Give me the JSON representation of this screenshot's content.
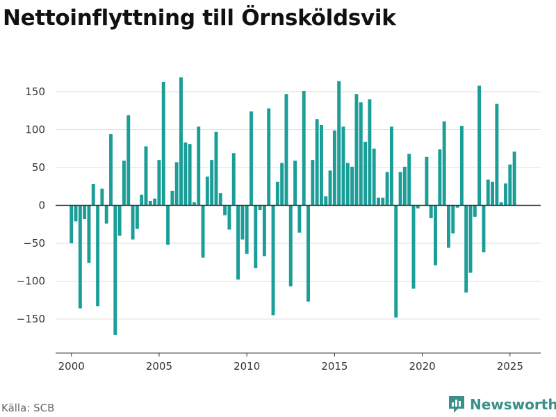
{
  "chart_data": {
    "type": "bar",
    "title": "Nettoinflyttning till Örnsköldsvik",
    "xlabel": "",
    "ylabel": "",
    "x_ticks": [
      "2000",
      "2005",
      "2010",
      "2015",
      "2020",
      "2025"
    ],
    "y_ticks": [
      "150",
      "100",
      "50",
      "0",
      "−50",
      "−100",
      "−150"
    ],
    "ylim": [
      -195,
      195
    ],
    "xlim": [
      1999.1,
      2026.75
    ],
    "grid": true,
    "bar_color": "#1b9e98",
    "x": [
      "2000 Q1",
      "2000 Q2",
      "2000 Q3",
      "2000 Q4",
      "2001 Q1",
      "2001 Q2",
      "2001 Q3",
      "2001 Q4",
      "2002 Q1",
      "2002 Q2",
      "2002 Q3",
      "2002 Q4",
      "2003 Q1",
      "2003 Q2",
      "2003 Q3",
      "2003 Q4",
      "2004 Q1",
      "2004 Q2",
      "2004 Q3",
      "2004 Q4",
      "2005 Q1",
      "2005 Q2",
      "2005 Q3",
      "2005 Q4",
      "2006 Q1",
      "2006 Q2",
      "2006 Q3",
      "2006 Q4",
      "2007 Q1",
      "2007 Q2",
      "2007 Q3",
      "2007 Q4",
      "2008 Q1",
      "2008 Q2",
      "2008 Q3",
      "2008 Q4",
      "2009 Q1",
      "2009 Q2",
      "2009 Q3",
      "2009 Q4",
      "2010 Q1",
      "2010 Q2",
      "2010 Q3",
      "2010 Q4",
      "2011 Q1",
      "2011 Q2",
      "2011 Q3",
      "2011 Q4",
      "2012 Q1",
      "2012 Q2",
      "2012 Q3",
      "2012 Q4",
      "2013 Q1",
      "2013 Q2",
      "2013 Q3",
      "2013 Q4",
      "2014 Q1",
      "2014 Q2",
      "2014 Q3",
      "2014 Q4",
      "2015 Q1",
      "2015 Q2",
      "2015 Q3",
      "2015 Q4",
      "2016 Q1",
      "2016 Q2",
      "2016 Q3",
      "2016 Q4",
      "2017 Q1",
      "2017 Q2",
      "2017 Q3",
      "2017 Q4",
      "2018 Q1",
      "2018 Q2",
      "2018 Q3",
      "2018 Q4",
      "2019 Q1",
      "2019 Q2",
      "2019 Q3",
      "2019 Q4",
      "2020 Q1",
      "2020 Q2",
      "2020 Q3",
      "2020 Q4",
      "2021 Q1",
      "2021 Q2",
      "2021 Q3",
      "2021 Q4",
      "2022 Q1",
      "2022 Q2",
      "2022 Q3",
      "2022 Q4",
      "2023 Q1",
      "2023 Q2",
      "2023 Q3",
      "2023 Q4",
      "2024 Q1",
      "2024 Q2",
      "2024 Q3",
      "2024 Q4",
      "2025 Q1",
      "2025 Q2"
    ],
    "values": [
      -50,
      -21,
      -136,
      -18,
      -76,
      28,
      -133,
      22,
      -24,
      94,
      -171,
      -40,
      59,
      119,
      -45,
      -31,
      14,
      78,
      6,
      9,
      60,
      163,
      -52,
      19,
      57,
      169,
      83,
      81,
      4,
      104,
      -69,
      38,
      60,
      97,
      16,
      -13,
      -32,
      69,
      -98,
      -45,
      -64,
      124,
      -83,
      -6,
      -67,
      128,
      -145,
      31,
      56,
      147,
      -107,
      59,
      -36,
      151,
      -127,
      60,
      114,
      106,
      12,
      46,
      99,
      164,
      104,
      56,
      51,
      147,
      136,
      84,
      140,
      75,
      10,
      10,
      44,
      104,
      -148,
      44,
      51,
      68,
      -110,
      -4,
      0,
      64,
      -17,
      -79,
      74,
      111,
      -56,
      -37,
      -3,
      105,
      -115,
      -89,
      -15,
      158,
      -62,
      34,
      31,
      134,
      4,
      29,
      54,
      71
    ]
  },
  "source": "Källa: SCB",
  "brand": {
    "name": "Newsworthy",
    "logo_icon": "bar-chart-badge-icon",
    "color": "#3a8f8a"
  }
}
